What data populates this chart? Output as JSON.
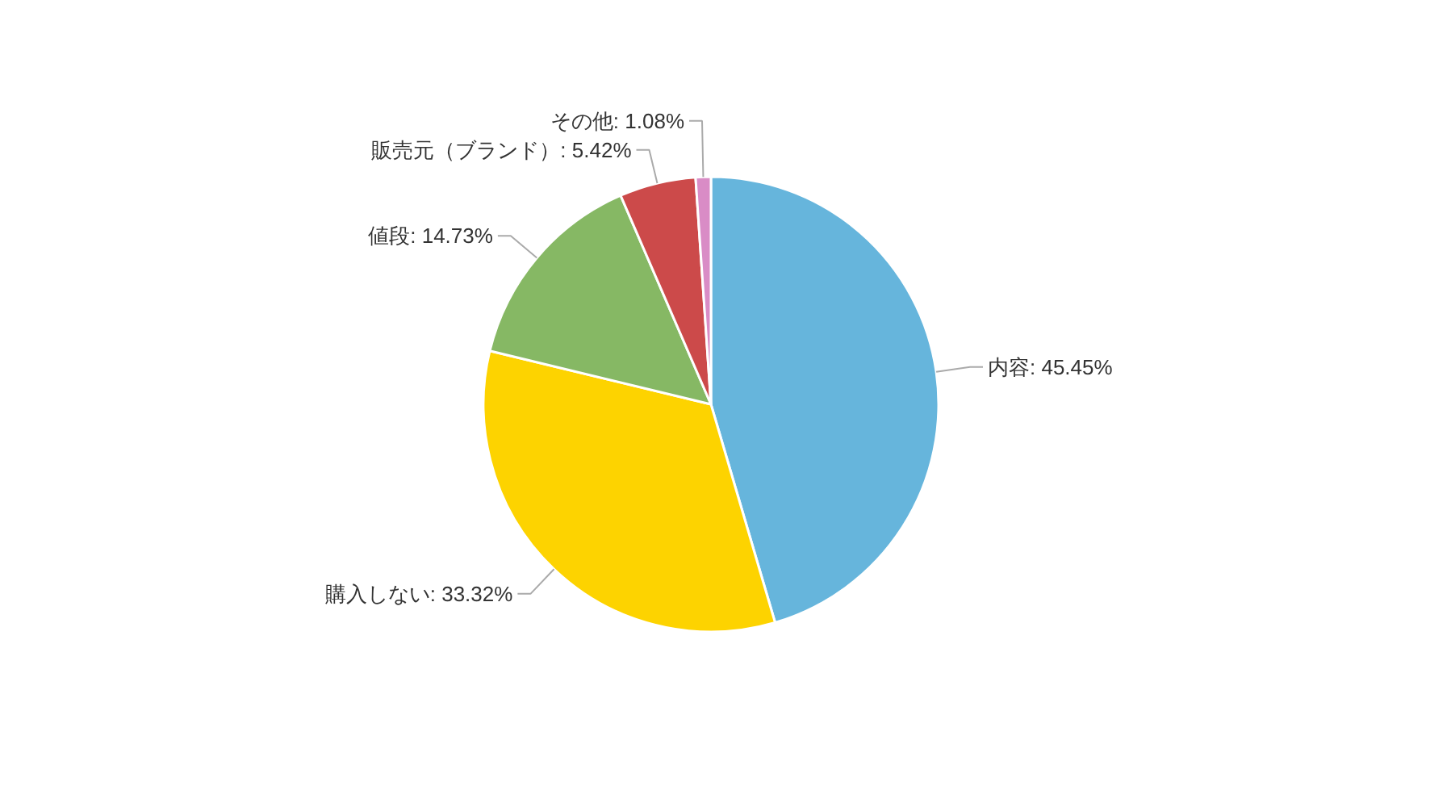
{
  "chart_data": {
    "type": "pie",
    "categories": [
      "内容",
      "購入しない",
      "値段",
      "販売元（ブランド）",
      "その他"
    ],
    "values": [
      45.45,
      33.32,
      14.73,
      5.42,
      1.08
    ],
    "value_labels": [
      "45.45%",
      "33.32%",
      "14.73%",
      "5.42%",
      "1.08%"
    ],
    "colors": [
      "#66b5dc",
      "#fdd300",
      "#86b864",
      "#cc4a4a",
      "#d98cc6"
    ]
  }
}
